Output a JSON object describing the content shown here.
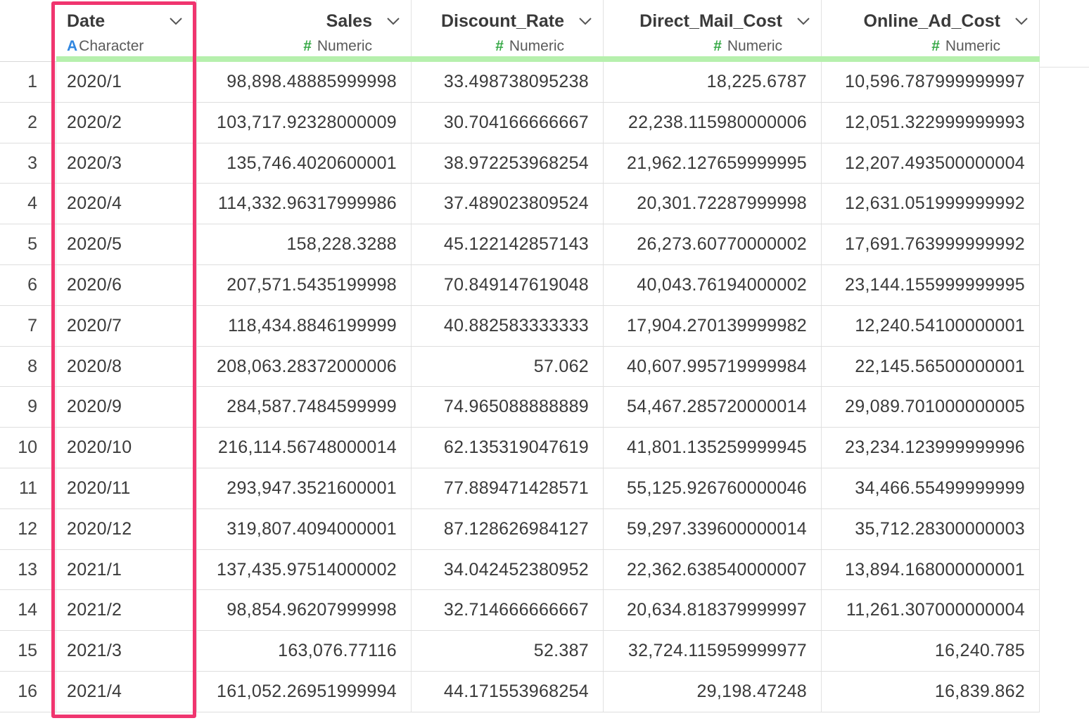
{
  "columns": [
    {
      "name": "Date",
      "type": "Character",
      "type_glyph": "A",
      "align": "left"
    },
    {
      "name": "Sales",
      "type": "Numeric",
      "type_glyph": "#",
      "align": "right"
    },
    {
      "name": "Discount_Rate",
      "type": "Numeric",
      "type_glyph": "#",
      "align": "right"
    },
    {
      "name": "Direct_Mail_Cost",
      "type": "Numeric",
      "type_glyph": "#",
      "align": "right"
    },
    {
      "name": "Online_Ad_Cost",
      "type": "Numeric",
      "type_glyph": "#",
      "align": "right"
    }
  ],
  "rows": [
    {
      "n": "1",
      "cells": [
        "2020/1",
        "98,898.48885999998",
        "33.498738095238",
        "18,225.6787",
        "10,596.787999999997"
      ]
    },
    {
      "n": "2",
      "cells": [
        "2020/2",
        "103,717.92328000009",
        "30.704166666667",
        "22,238.115980000006",
        "12,051.322999999993"
      ]
    },
    {
      "n": "3",
      "cells": [
        "2020/3",
        "135,746.4020600001",
        "38.972253968254",
        "21,962.127659999995",
        "12,207.493500000004"
      ]
    },
    {
      "n": "4",
      "cells": [
        "2020/4",
        "114,332.96317999986",
        "37.489023809524",
        "20,301.72287999998",
        "12,631.051999999992"
      ]
    },
    {
      "n": "5",
      "cells": [
        "2020/5",
        "158,228.3288",
        "45.122142857143",
        "26,273.60770000002",
        "17,691.763999999992"
      ]
    },
    {
      "n": "6",
      "cells": [
        "2020/6",
        "207,571.5435199998",
        "70.849147619048",
        "40,043.76194000002",
        "23,144.155999999995"
      ]
    },
    {
      "n": "7",
      "cells": [
        "2020/7",
        "118,434.8846199999",
        "40.882583333333",
        "17,904.270139999982",
        "12,240.54100000001"
      ]
    },
    {
      "n": "8",
      "cells": [
        "2020/8",
        "208,063.28372000006",
        "57.062",
        "40,607.995719999984",
        "22,145.56500000001"
      ]
    },
    {
      "n": "9",
      "cells": [
        "2020/9",
        "284,587.7484599999",
        "74.965088888889",
        "54,467.285720000014",
        "29,089.701000000005"
      ]
    },
    {
      "n": "10",
      "cells": [
        "2020/10",
        "216,114.56748000014",
        "62.135319047619",
        "41,801.135259999945",
        "23,234.123999999996"
      ]
    },
    {
      "n": "11",
      "cells": [
        "2020/11",
        "293,947.3521600001",
        "77.889471428571",
        "55,125.926760000046",
        "34,466.55499999999"
      ]
    },
    {
      "n": "12",
      "cells": [
        "2020/12",
        "319,807.4094000001",
        "87.128626984127",
        "59,297.339600000014",
        "35,712.28300000003"
      ]
    },
    {
      "n": "13",
      "cells": [
        "2021/1",
        "137,435.97514000002",
        "34.042452380952",
        "22,362.638540000007",
        "13,894.168000000001"
      ]
    },
    {
      "n": "14",
      "cells": [
        "2021/2",
        "98,854.96207999998",
        "32.714666666667",
        "20,634.818379999997",
        "11,261.307000000004"
      ]
    },
    {
      "n": "15",
      "cells": [
        "2021/3",
        "163,076.77116",
        "52.387",
        "32,724.115959999977",
        "16,240.785"
      ]
    },
    {
      "n": "16",
      "cells": [
        "2021/4",
        "161,052.26951999994",
        "44.171553968254",
        "29,198.47248",
        "16,839.862"
      ]
    }
  ],
  "colors": {
    "highlight_border": "#f0356f",
    "header_underline": "#b6f0ad",
    "character_glyph": "#2f86e0",
    "numeric_glyph": "#35a845"
  }
}
